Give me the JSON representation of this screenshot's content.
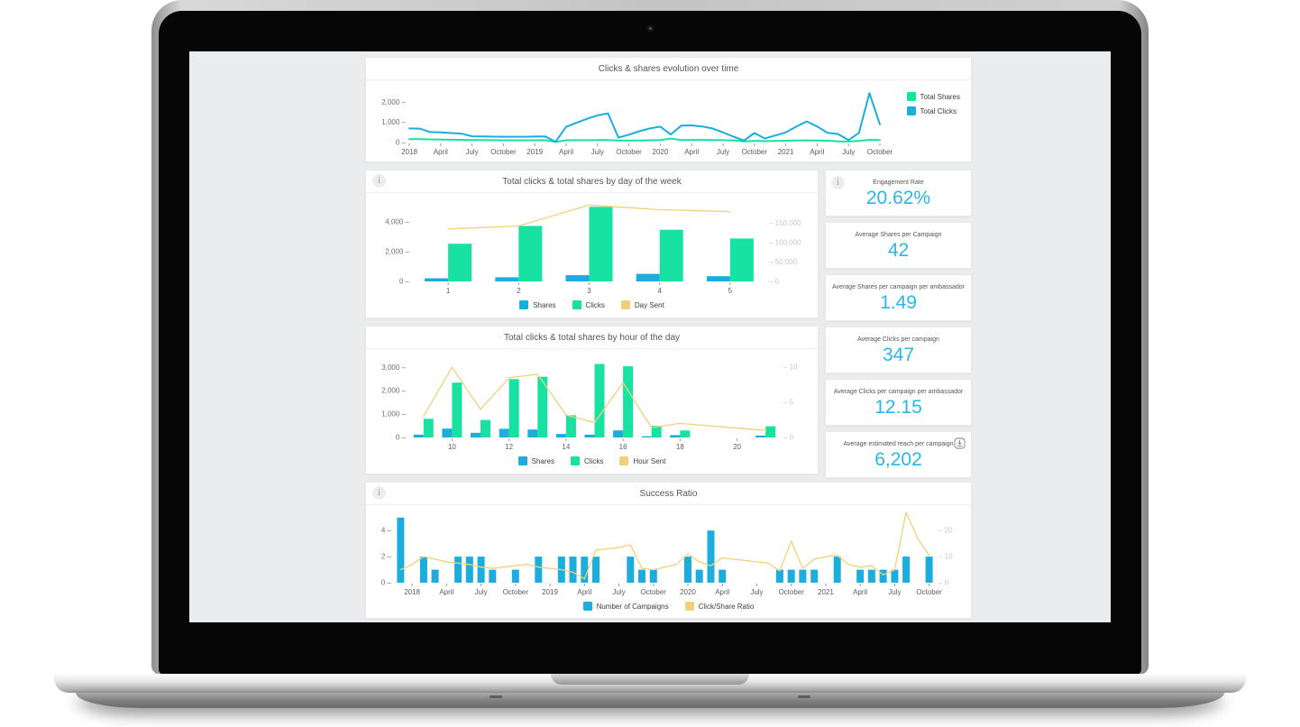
{
  "dashboard": {
    "cards": {
      "evolution": {
        "title": "Clicks & shares evolution over time"
      },
      "by_day": {
        "title": "Total clicks & total shares by day of the week"
      },
      "by_hour": {
        "title": "Total clicks & total shares by hour of the day"
      },
      "success": {
        "title": "Success Ratio"
      }
    },
    "kpis": [
      {
        "label": "Engagement Rate",
        "value": "20.62%",
        "has_info": true
      },
      {
        "label": "Average Shares per Campaign",
        "value": "42"
      },
      {
        "label": "Average Shares per campaign per ambassador",
        "value": "1.49"
      },
      {
        "label": "Average Clicks per campaign",
        "value": "347"
      },
      {
        "label": "Average Clicks per campaign per ambassador",
        "value": "12.15"
      },
      {
        "label": "Average estimated reach per campaign",
        "value": "6,202",
        "has_download": true
      }
    ]
  },
  "colors": {
    "accent_blue": "#1caddf",
    "accent_green": "#18e2a2",
    "accent_yellow": "#efd17c",
    "kpi_value": "#29b7e6"
  },
  "chart_data": [
    {
      "type": "line",
      "title": "Clicks & shares evolution over time",
      "x_unit": "month",
      "x_range": "Jan 2018 - Oct 2021",
      "slots": 46,
      "left_axis": {
        "max": 2600,
        "ticks": [
          {
            "v": 0,
            "label": "0"
          },
          {
            "v": 1000,
            "label": "1,000"
          },
          {
            "v": 2000,
            "label": "2,000"
          }
        ]
      },
      "x_ticks": [
        {
          "i": 0,
          "label": "2018"
        },
        {
          "i": 3,
          "label": "April"
        },
        {
          "i": 6,
          "label": "July"
        },
        {
          "i": 9,
          "label": "October"
        },
        {
          "i": 12,
          "label": "2019"
        },
        {
          "i": 15,
          "label": "April"
        },
        {
          "i": 18,
          "label": "July"
        },
        {
          "i": 21,
          "label": "October"
        },
        {
          "i": 24,
          "label": "2020"
        },
        {
          "i": 27,
          "label": "April"
        },
        {
          "i": 30,
          "label": "July"
        },
        {
          "i": 33,
          "label": "October"
        },
        {
          "i": 36,
          "label": "2021"
        },
        {
          "i": 39,
          "label": "April"
        },
        {
          "i": 42,
          "label": "July"
        },
        {
          "i": 45,
          "label": "October"
        }
      ],
      "lines": [
        {
          "name": "Total Shares",
          "color": "#18e2a2",
          "axis": "left",
          "width": 2,
          "values": [
            170,
            165,
            155,
            150,
            140,
            135,
            125,
            120,
            115,
            112,
            110,
            110,
            112,
            115,
            25,
            110,
            115,
            118,
            120,
            125,
            105,
            100,
            105,
            112,
            125,
            195,
            120,
            128,
            128,
            122,
            115,
            108,
            60,
            85,
            70,
            78,
            88,
            98,
            108,
            98,
            88,
            60,
            50,
            78,
            135,
            125
          ]
        },
        {
          "name": "Total Clicks",
          "color": "#1caddf",
          "axis": "left",
          "width": 2,
          "values": [
            700,
            690,
            520,
            500,
            470,
            440,
            310,
            300,
            290,
            285,
            285,
            285,
            295,
            300,
            40,
            780,
            980,
            1180,
            1350,
            1450,
            240,
            390,
            560,
            700,
            790,
            400,
            840,
            850,
            800,
            700,
            500,
            290,
            100,
            470,
            200,
            350,
            500,
            790,
            1050,
            800,
            480,
            420,
            120,
            480,
            2450,
            900
          ]
        }
      ],
      "legend": [
        {
          "label": "Total Shares",
          "color": "#18e2a2"
        },
        {
          "label": "Total Clicks",
          "color": "#1caddf"
        }
      ],
      "legend_position": "right"
    },
    {
      "type": "bar",
      "title": "Total clicks & total shares by day of the week",
      "categories": [
        "1",
        "2",
        "3",
        "4",
        "5"
      ],
      "slots": 5,
      "left_axis": {
        "max": 5200,
        "ticks": [
          {
            "v": 0,
            "label": "0"
          },
          {
            "v": 2000,
            "label": "2,000"
          },
          {
            "v": 4000,
            "label": "4,000"
          }
        ]
      },
      "right_axis": {
        "max": 200000,
        "ticks": [
          {
            "v": 0,
            "label": "0"
          },
          {
            "v": 50000,
            "label": "50,000"
          },
          {
            "v": 100000,
            "label": "100,000"
          },
          {
            "v": 150000,
            "label": "150,000"
          }
        ]
      },
      "x_ticks": [
        {
          "i": 0,
          "label": "1"
        },
        {
          "i": 1,
          "label": "2"
        },
        {
          "i": 2,
          "label": "3"
        },
        {
          "i": 3,
          "label": "4"
        },
        {
          "i": 4,
          "label": "5"
        }
      ],
      "bars": [
        {
          "name": "Shares",
          "color": "#1caddf",
          "axis": "left",
          "values": [
            210,
            280,
            420,
            510,
            350
          ]
        },
        {
          "name": "Clicks",
          "color": "#18e2a2",
          "axis": "left",
          "values": [
            2530,
            3720,
            5000,
            3465,
            2880
          ]
        }
      ],
      "lines": [
        {
          "name": "Day Sent",
          "color": "#efd17c",
          "axis": "right",
          "width": 1.3,
          "values": [
            135000,
            143000,
            197000,
            185000,
            180000
          ]
        }
      ],
      "legend": [
        {
          "label": "Shares",
          "color": "#1caddf"
        },
        {
          "label": "Clicks",
          "color": "#18e2a2"
        },
        {
          "label": "Day Sent",
          "color": "#efd17c"
        }
      ],
      "legend_position": "bottom"
    },
    {
      "type": "bar",
      "title": "Total clicks & total shares by hour of the day",
      "categories": [
        "9",
        "10",
        "11",
        "12",
        "13",
        "14",
        "15",
        "16",
        "17",
        "18",
        "19",
        "20",
        "21"
      ],
      "slots": 13,
      "left_axis": {
        "max": 3400,
        "ticks": [
          {
            "v": 0,
            "label": "0"
          },
          {
            "v": 1000,
            "label": "1,000"
          },
          {
            "v": 2000,
            "label": "2,000"
          },
          {
            "v": 3000,
            "label": "3,000"
          }
        ]
      },
      "right_axis": {
        "max": 11.3,
        "ticks": [
          {
            "v": 0,
            "label": "0"
          },
          {
            "v": 5,
            "label": "5"
          },
          {
            "v": 10,
            "label": "10"
          }
        ]
      },
      "x_ticks": [
        {
          "i": 1,
          "label": "10"
        },
        {
          "i": 3,
          "label": "12"
        },
        {
          "i": 5,
          "label": "14"
        },
        {
          "i": 7,
          "label": "16"
        },
        {
          "i": 9,
          "label": "18"
        },
        {
          "i": 11,
          "label": "20"
        }
      ],
      "bars": [
        {
          "name": "Shares",
          "color": "#1caddf",
          "axis": "left",
          "values": [
            120,
            380,
            200,
            370,
            340,
            150,
            120,
            300,
            50,
            100,
            0,
            0,
            80
          ]
        },
        {
          "name": "Clicks",
          "color": "#18e2a2",
          "axis": "left",
          "values": [
            800,
            2350,
            750,
            2500,
            2600,
            950,
            3150,
            3050,
            500,
            300,
            0,
            0,
            480
          ]
        }
      ],
      "lines": [
        {
          "name": "Hour Sent",
          "color": "#efd17c",
          "axis": "right",
          "width": 1.3,
          "values": [
            3,
            10,
            4,
            8.5,
            9,
            3.2,
            2.1,
            7.8,
            1.4,
            2,
            null,
            null,
            1
          ]
        }
      ],
      "legend": [
        {
          "label": "Shares",
          "color": "#1caddf"
        },
        {
          "label": "Clicks",
          "color": "#18e2a2"
        },
        {
          "label": "Hour Sent",
          "color": "#efd17c"
        }
      ],
      "legend_position": "bottom"
    },
    {
      "type": "bar",
      "title": "Success Ratio",
      "x_unit": "month",
      "x_range": "Dec 2017 - Oct 2021",
      "slots": 47,
      "left_axis": {
        "max": 5.4,
        "ticks": [
          {
            "v": 0,
            "label": "0"
          },
          {
            "v": 2,
            "label": "2"
          },
          {
            "v": 4,
            "label": "4"
          }
        ]
      },
      "right_axis": {
        "max": 27,
        "ticks": [
          {
            "v": 0,
            "label": "0"
          },
          {
            "v": 10,
            "label": "10"
          },
          {
            "v": 20,
            "label": "20"
          }
        ]
      },
      "x_ticks": [
        {
          "i": 1,
          "label": "2018"
        },
        {
          "i": 4,
          "label": "April"
        },
        {
          "i": 7,
          "label": "July"
        },
        {
          "i": 10,
          "label": "October"
        },
        {
          "i": 13,
          "label": "2019"
        },
        {
          "i": 16,
          "label": "April"
        },
        {
          "i": 19,
          "label": "July"
        },
        {
          "i": 22,
          "label": "October"
        },
        {
          "i": 25,
          "label": "2020"
        },
        {
          "i": 28,
          "label": "April"
        },
        {
          "i": 31,
          "label": "July"
        },
        {
          "i": 34,
          "label": "October"
        },
        {
          "i": 37,
          "label": "2021"
        },
        {
          "i": 40,
          "label": "April"
        },
        {
          "i": 43,
          "label": "July"
        },
        {
          "i": 46,
          "label": "October"
        }
      ],
      "bars": [
        {
          "name": "Number of Campaigns",
          "color": "#1caddf",
          "axis": "left",
          "values": [
            5,
            0,
            2,
            1,
            0,
            2,
            2,
            2,
            1,
            0,
            1,
            0,
            2,
            0,
            2,
            2,
            2,
            2,
            0,
            0,
            2,
            1,
            1,
            0,
            0,
            2,
            1,
            4,
            1,
            0,
            0,
            0,
            0,
            1,
            1,
            1,
            1,
            0,
            2,
            0,
            1,
            1,
            1,
            1,
            2,
            0,
            2
          ]
        }
      ],
      "lines": [
        {
          "name": "Click/Share Ratio",
          "color": "#efd17c",
          "axis": "right",
          "width": 1.3,
          "values": [
            5,
            7,
            10,
            9,
            8,
            7.5,
            7,
            6,
            5.5,
            6,
            6.5,
            7,
            6,
            5.5,
            5,
            4,
            1.5,
            12.5,
            13,
            13.5,
            14.5,
            5.5,
            5,
            6,
            7,
            11,
            8,
            6.5,
            9.5,
            9,
            8.5,
            8,
            7.5,
            4.5,
            16,
            5.5,
            9,
            10,
            10.5,
            7,
            6,
            6.5,
            3,
            5,
            27,
            17,
            10.5
          ]
        }
      ],
      "legend": [
        {
          "label": "Number of Campaigns",
          "color": "#1caddf"
        },
        {
          "label": "Click/Share Ratio",
          "color": "#efd17c"
        }
      ],
      "legend_position": "bottom"
    }
  ]
}
